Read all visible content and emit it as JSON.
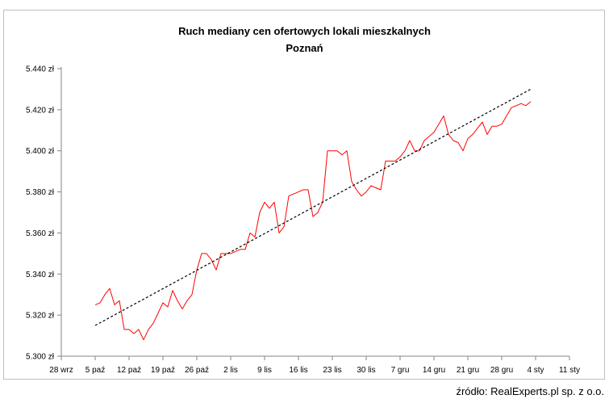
{
  "chart_data": {
    "type": "line",
    "title": "Ruch mediany cen ofertowych lokali mieszkalnych",
    "subtitle": "Poznań",
    "y_tick_labels": [
      "5.300 zł",
      "5.320 zł",
      "5.340 zł",
      "5.360 zł",
      "5.380 zł",
      "5.400 zł",
      "5.420 zł",
      "5.440 zł"
    ],
    "y_ticks": [
      5300,
      5320,
      5340,
      5360,
      5380,
      5400,
      5420,
      5440
    ],
    "ylim": [
      5300,
      5440
    ],
    "x_tick_labels": [
      "28 wrz",
      "5 paź",
      "12 paź",
      "19 paź",
      "26 paź",
      "2 lis",
      "9 lis",
      "16 lis",
      "23 lis",
      "30 lis",
      "7 gru",
      "14 gru",
      "21 gru",
      "28 gru",
      "4 sty",
      "11 sty"
    ],
    "x_ticks": [
      "2014-09-28",
      "2014-10-05",
      "2014-10-12",
      "2014-10-19",
      "2014-10-26",
      "2014-11-02",
      "2014-11-09",
      "2014-11-16",
      "2014-11-23",
      "2014-11-30",
      "2014-12-07",
      "2014-12-14",
      "2014-12-21",
      "2014-12-28",
      "2015-01-04",
      "2015-01-11"
    ],
    "xlim": [
      "2014-09-28",
      "2015-01-11"
    ],
    "series": [
      {
        "name": "",
        "color": "#ff0000",
        "style": "solid",
        "x": [
          "2014-10-05",
          "2014-10-06",
          "2014-10-07",
          "2014-10-08",
          "2014-10-09",
          "2014-10-10",
          "2014-10-11",
          "2014-10-12",
          "2014-10-13",
          "2014-10-14",
          "2014-10-15",
          "2014-10-16",
          "2014-10-17",
          "2014-10-18",
          "2014-10-19",
          "2014-10-20",
          "2014-10-21",
          "2014-10-22",
          "2014-10-23",
          "2014-10-24",
          "2014-10-25",
          "2014-10-26",
          "2014-10-27",
          "2014-10-28",
          "2014-10-29",
          "2014-10-30",
          "2014-10-31",
          "2014-11-01",
          "2014-11-02",
          "2014-11-03",
          "2014-11-04",
          "2014-11-05",
          "2014-11-06",
          "2014-11-07",
          "2014-11-08",
          "2014-11-09",
          "2014-11-10",
          "2014-11-11",
          "2014-11-12",
          "2014-11-13",
          "2014-11-14",
          "2014-11-15",
          "2014-11-16",
          "2014-11-17",
          "2014-11-18",
          "2014-11-19",
          "2014-11-20",
          "2014-11-21",
          "2014-11-22",
          "2014-11-23",
          "2014-11-24",
          "2014-11-25",
          "2014-11-26",
          "2014-11-27",
          "2014-11-28",
          "2014-11-29",
          "2014-11-30",
          "2014-12-01",
          "2014-12-02",
          "2014-12-03",
          "2014-12-04",
          "2014-12-05",
          "2014-12-06",
          "2014-12-07",
          "2014-12-08",
          "2014-12-09",
          "2014-12-10",
          "2014-12-11",
          "2014-12-12",
          "2014-12-13",
          "2014-12-14",
          "2014-12-15",
          "2014-12-16",
          "2014-12-17",
          "2014-12-18",
          "2014-12-19",
          "2014-12-20",
          "2014-12-21",
          "2014-12-22",
          "2014-12-23",
          "2014-12-24",
          "2014-12-25",
          "2014-12-26",
          "2014-12-27",
          "2014-12-28",
          "2014-12-29",
          "2014-12-30",
          "2014-12-31",
          "2015-01-01",
          "2015-01-02",
          "2015-01-03"
        ],
        "y": [
          5325,
          5326,
          5330,
          5333,
          5325,
          5327,
          5313,
          5313,
          5311,
          5313,
          5308,
          5313,
          5316,
          5321,
          5326,
          5324,
          5332,
          5327,
          5323,
          5327,
          5330,
          5342,
          5350,
          5350,
          5347,
          5342,
          5350,
          5350,
          5350,
          5351,
          5352,
          5352,
          5360,
          5358,
          5370,
          5375,
          5372,
          5375,
          5360,
          5363,
          5378,
          5379,
          5380,
          5381,
          5381,
          5368,
          5370,
          5375,
          5400,
          5400,
          5400,
          5398,
          5400,
          5385,
          5381,
          5378,
          5380,
          5383,
          5382,
          5381,
          5395,
          5395,
          5395,
          5397,
          5400,
          5405,
          5400,
          5400,
          5405,
          5407,
          5409,
          5413,
          5417,
          5408,
          5405,
          5404,
          5400,
          5406,
          5408,
          5411,
          5414,
          5408,
          5412,
          5412,
          5413,
          5417,
          5421,
          5422,
          5423,
          5422,
          5424
        ]
      },
      {
        "name": "",
        "color": "#000000",
        "style": "dashed",
        "trend": true,
        "x": [
          "2014-10-05",
          "2015-01-03"
        ],
        "y": [
          5315,
          5430
        ]
      }
    ],
    "grid": false,
    "legend": "none",
    "source": "źródło: RealExperts.pl sp. z o.o."
  }
}
